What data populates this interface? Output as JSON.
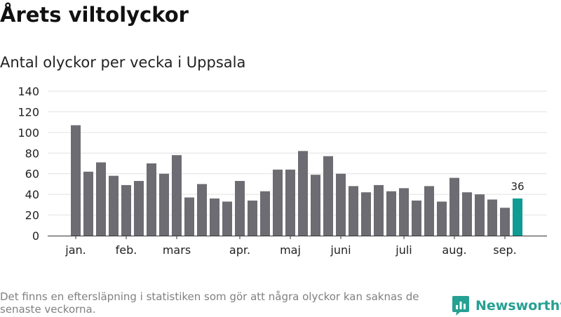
{
  "title": "Årets viltolyckor",
  "subtitle": "Antal olyckor per vecka i Uppsala",
  "footnote": "Det finns en eftersläpning i statistiken som gör att några olyckor kan saknas de senaste veckorna.",
  "brand": {
    "name": "Newsworthy",
    "icon": "newsworthy-logo-icon",
    "color": "#26a092"
  },
  "chart_data": {
    "type": "bar",
    "title": "Årets viltolyckor",
    "subtitle": "Antal olyckor per vecka i Uppsala",
    "xlabel": "",
    "ylabel": "",
    "ylim": [
      0,
      140
    ],
    "yticks": [
      0,
      20,
      40,
      60,
      80,
      100,
      120,
      140
    ],
    "grid": true,
    "legend": "none",
    "x_tick_labels": [
      {
        "label": "jan.",
        "week": 1
      },
      {
        "label": "feb.",
        "week": 5
      },
      {
        "label": "mars",
        "week": 9
      },
      {
        "label": "apr.",
        "week": 14
      },
      {
        "label": "maj",
        "week": 18
      },
      {
        "label": "juni",
        "week": 22
      },
      {
        "label": "juli",
        "week": 27
      },
      {
        "label": "aug.",
        "week": 31
      },
      {
        "label": "sep.",
        "week": 35
      }
    ],
    "categories": [
      1,
      2,
      3,
      4,
      5,
      6,
      7,
      8,
      9,
      10,
      11,
      12,
      13,
      14,
      15,
      16,
      17,
      18,
      19,
      20,
      21,
      22,
      23,
      24,
      25,
      26,
      27,
      28,
      29,
      30,
      31,
      32,
      33,
      34,
      35,
      36
    ],
    "values": [
      107,
      62,
      71,
      58,
      49,
      53,
      70,
      60,
      78,
      37,
      50,
      36,
      33,
      53,
      34,
      43,
      64,
      64,
      82,
      59,
      77,
      60,
      48,
      42,
      49,
      43,
      46,
      34,
      48,
      33,
      56,
      42,
      40,
      35,
      27,
      36
    ],
    "colors": {
      "bar": "#6d6c72",
      "highlight": "#0e9c93",
      "grid": "#e2e2e2",
      "axis": "#333333"
    },
    "highlight_last": true,
    "data_labels": [
      {
        "index": 35,
        "text": "36"
      }
    ]
  }
}
